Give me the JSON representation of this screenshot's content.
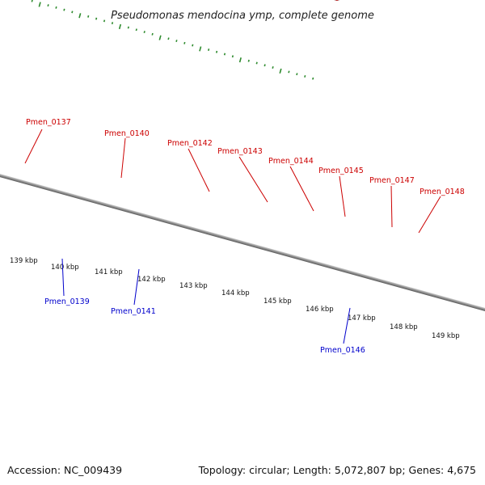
{
  "title": "Pseudomonas mendocina ymp, complete genome",
  "footer": {
    "accession": "Accession: NC_009439",
    "summary": "Topology: circular; Length: 5,072,807 bp; Genes: 4,675"
  },
  "colors": {
    "backbone": "#8c8c8c",
    "tick": "#2e8b2e",
    "label_forward": "#cc0000",
    "label_reverse": "#0000cc",
    "red": "#ee0000",
    "pink": "#ee8888",
    "steel": "#5b8db8",
    "blue": "#0000ee",
    "silver": "#c0c0c0",
    "cyan": "#22eeee",
    "khaki": "#c2bd88",
    "dark_gray": "#6a6a6a"
  },
  "ticks": [
    "139 kbp",
    "140 kbp",
    "141 kbp",
    "142 kbp",
    "143 kbp",
    "144 kbp",
    "145 kbp",
    "146 kbp",
    "147 kbp",
    "148 kbp",
    "149 kbp"
  ],
  "gene_labels": [
    {
      "text": "Pmen_0137",
      "side": "forward"
    },
    {
      "text": "Pmen_0139",
      "side": "reverse"
    },
    {
      "text": "Pmen_0140",
      "side": "forward"
    },
    {
      "text": "Pmen_0141",
      "side": "reverse"
    },
    {
      "text": "Pmen_0142",
      "side": "forward"
    },
    {
      "text": "Pmen_0143",
      "side": "forward"
    },
    {
      "text": "Pmen_0144",
      "side": "forward"
    },
    {
      "text": "Pmen_0145",
      "side": "forward"
    },
    {
      "text": "Pmen_0146",
      "side": "reverse"
    },
    {
      "text": "Pmen_0147",
      "side": "forward"
    },
    {
      "text": "Pmen_0148",
      "side": "forward"
    }
  ]
}
